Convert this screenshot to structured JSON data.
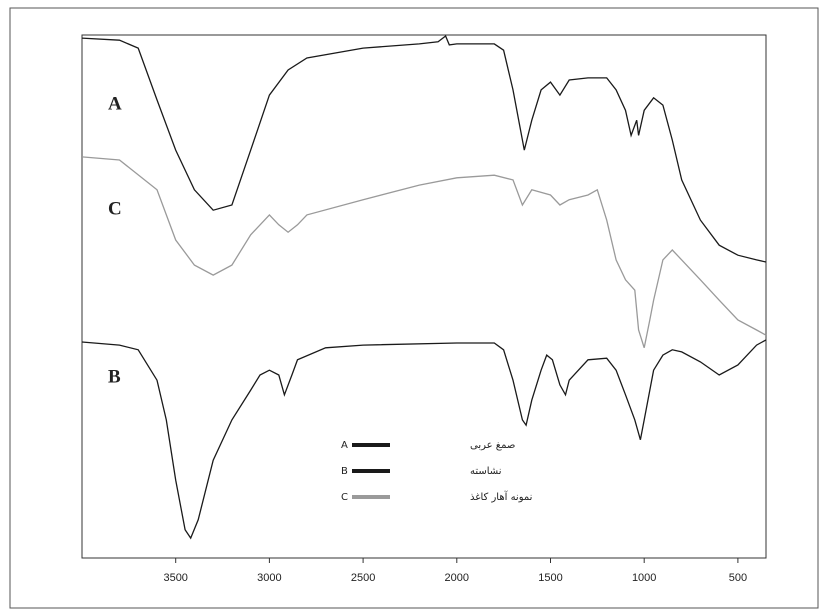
{
  "chart_data": {
    "type": "line",
    "xlim": [
      4000,
      350
    ],
    "ylim": [
      0,
      100
    ],
    "xticks": [
      3500,
      3000,
      2500,
      2000,
      1500,
      1000,
      500
    ],
    "series": [
      {
        "label": "A",
        "name": "صمغ عربی",
        "color": "#1a1a1a",
        "x": [
          4000,
          3800,
          3700,
          3600,
          3500,
          3400,
          3300,
          3200,
          3100,
          3000,
          2900,
          2800,
          2500,
          2200,
          2100,
          2060,
          2040,
          2000,
          1800,
          1750,
          1700,
          1640,
          1600,
          1550,
          1500,
          1450,
          1400,
          1300,
          1200,
          1150,
          1100,
          1070,
          1040,
          1030,
          1000,
          950,
          900,
          850,
          800,
          700,
          600,
          500,
          400,
          350
        ],
        "values": [
          99.4,
          99.0,
          97.5,
          87.6,
          78.0,
          70.4,
          66.5,
          67.5,
          78.0,
          88.5,
          93.3,
          95.6,
          97.5,
          98.3,
          98.7,
          99.8,
          98.1,
          98.3,
          98.3,
          97.1,
          89.5,
          78.0,
          83.7,
          89.5,
          91.0,
          88.5,
          91.4,
          91.8,
          91.8,
          89.5,
          85.6,
          80.8,
          83.7,
          80.8,
          85.6,
          88.0,
          86.6,
          79.9,
          72.3,
          64.6,
          59.8,
          57.9,
          57.0,
          56.6
        ]
      },
      {
        "label": "B",
        "name": "نشاسته",
        "color": "#1a1a1a",
        "x": [
          4000,
          3800,
          3700,
          3600,
          3550,
          3500,
          3450,
          3420,
          3380,
          3300,
          3200,
          3100,
          3050,
          3000,
          2950,
          2920,
          2880,
          2850,
          2700,
          2500,
          2000,
          1800,
          1750,
          1700,
          1650,
          1630,
          1600,
          1550,
          1520,
          1490,
          1450,
          1420,
          1400,
          1300,
          1200,
          1150,
          1100,
          1050,
          1020,
          1000,
          950,
          900,
          850,
          800,
          700,
          600,
          500,
          400,
          350
        ],
        "values": [
          41.3,
          40.7,
          39.8,
          34.0,
          26.4,
          14.9,
          5.4,
          3.8,
          7.3,
          18.7,
          26.4,
          32.1,
          35.0,
          35.9,
          35.0,
          31.2,
          35.0,
          37.9,
          40.2,
          40.7,
          41.1,
          41.1,
          39.8,
          34.0,
          26.4,
          25.4,
          30.2,
          35.9,
          38.8,
          37.9,
          33.1,
          31.2,
          34.0,
          37.9,
          38.2,
          35.9,
          31.2,
          26.4,
          22.6,
          26.4,
          35.9,
          38.8,
          39.8,
          39.4,
          37.5,
          35.0,
          36.9,
          40.7,
          41.7
        ]
      },
      {
        "label": "C",
        "name": "نمونه آهار کاغذ",
        "color": "#9a9a9a",
        "x": [
          4000,
          3800,
          3600,
          3500,
          3400,
          3300,
          3200,
          3100,
          3000,
          2950,
          2900,
          2850,
          2800,
          2500,
          2200,
          2000,
          1800,
          1700,
          1650,
          1600,
          1500,
          1450,
          1400,
          1300,
          1250,
          1200,
          1150,
          1100,
          1050,
          1030,
          1000,
          970,
          950,
          900,
          850,
          800,
          700,
          600,
          500,
          400,
          350
        ],
        "values": [
          76.7,
          76.1,
          70.4,
          60.8,
          56.0,
          54.1,
          56.0,
          61.8,
          65.6,
          63.7,
          62.3,
          63.7,
          65.6,
          68.5,
          71.3,
          72.7,
          73.2,
          72.3,
          67.5,
          70.4,
          69.4,
          67.5,
          68.5,
          69.4,
          70.4,
          64.6,
          57.0,
          53.2,
          51.2,
          43.6,
          40.2,
          45.5,
          49.3,
          57.0,
          58.9,
          57.0,
          53.2,
          49.3,
          45.5,
          43.6,
          42.6
        ]
      }
    ]
  }
}
